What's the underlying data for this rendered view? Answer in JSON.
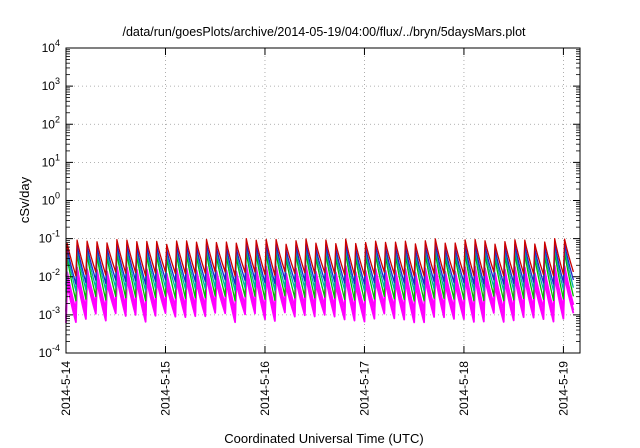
{
  "chart_data": {
    "type": "line",
    "title": "/data/run/goesPlots/archive/2014-05-19/04:00/flux/../bryn/5daysMars.plot",
    "xlabel": "Coordinated Universal Time (UTC)",
    "ylabel": "cSv/day",
    "x_type": "date",
    "x_range": [
      "2014-05-14 00:00",
      "2014-05-19 04:00"
    ],
    "x_ticks": [
      "2014-5-14",
      "2014-5-15",
      "2014-5-16",
      "2014-5-17",
      "2014-5-18",
      "2014-5-19"
    ],
    "y_scale": "log",
    "ylim": [
      0.0001,
      10000
    ],
    "y_ticks": [
      {
        "base": "10",
        "exp": "-4"
      },
      {
        "base": "10",
        "exp": "-3"
      },
      {
        "base": "10",
        "exp": "-2"
      },
      {
        "base": "10",
        "exp": "-1"
      },
      {
        "base": "10",
        "exp": "0"
      },
      {
        "base": "10",
        "exp": "1"
      },
      {
        "base": "10",
        "exp": "2"
      },
      {
        "base": "10",
        "exp": "3"
      },
      {
        "base": "10",
        "exp": "4"
      }
    ],
    "grid": true,
    "series_colors": [
      "#cc0000",
      "#2222cc",
      "#00aaaa",
      "#00bb00",
      "#ff00ff",
      "#ff00ff",
      "#ff00ff"
    ],
    "sawtooth": {
      "period_hours": 2.4,
      "peak_min": [
        0.07,
        0.052,
        0.04,
        0.03,
        0.012,
        0.008,
        0.006
      ],
      "trough_min": [
        0.01,
        0.006,
        0.004,
        0.0022,
        0.0012,
        0.0008,
        0.0006
      ],
      "peak_max": [
        0.1,
        0.075,
        0.06,
        0.045,
        0.02,
        0.014,
        0.011
      ],
      "trough_max": [
        0.013,
        0.008,
        0.005,
        0.003,
        0.0018,
        0.0013,
        0.0011
      ]
    }
  }
}
